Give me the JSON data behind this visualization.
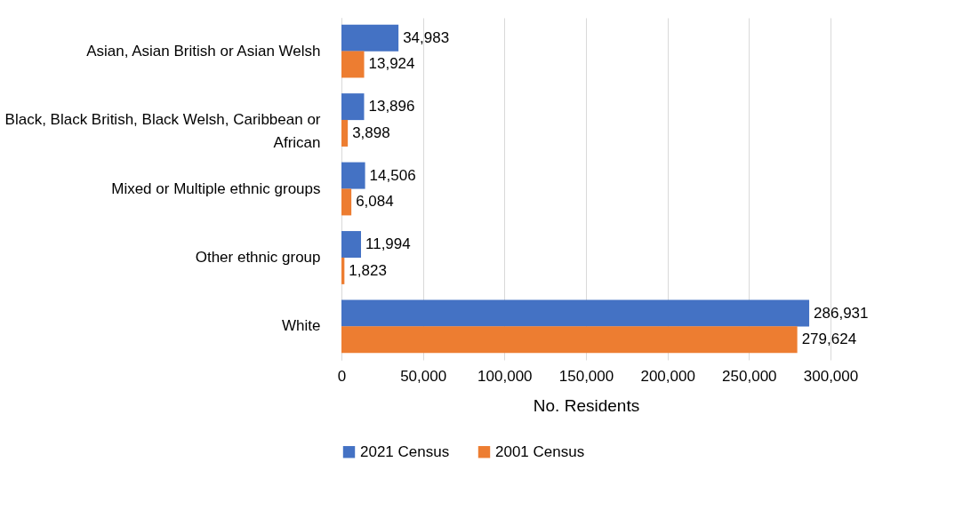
{
  "chart_data": {
    "type": "bar",
    "orientation": "horizontal",
    "xlabel": "No. Residents",
    "categories": [
      "Asian, Asian British or Asian Welsh",
      "Black, Black British, Black Welsh, Caribbean or African",
      "Mixed or Multiple ethnic groups",
      "Other ethnic group",
      "White"
    ],
    "series": [
      {
        "name": "2021 Census",
        "color": "#4472c4",
        "values": [
          34983,
          13896,
          14506,
          11994,
          286931
        ],
        "value_labels": [
          "34,983",
          "13,896",
          "14,506",
          "11,994",
          "286,931"
        ]
      },
      {
        "name": "2001 Census",
        "color": "#ed7d31",
        "values": [
          13924,
          3898,
          6084,
          1823,
          279624
        ],
        "value_labels": [
          "13,924",
          "3,898",
          "6,084",
          "1,823",
          "279,624"
        ]
      }
    ],
    "xlim": [
      0,
      300000
    ],
    "xticks": [
      0,
      {
        "value": 50000,
        "label": "50,000"
      },
      {
        "value": 100000,
        "label": "100,000"
      },
      {
        "value": 150000,
        "label": "150,000"
      },
      {
        "value": 200000,
        "label": "200,000"
      },
      {
        "value": 250000,
        "label": "250,000"
      },
      {
        "value": 300000,
        "label": "300,000"
      }
    ],
    "grid": "x",
    "legend": "bottom"
  }
}
